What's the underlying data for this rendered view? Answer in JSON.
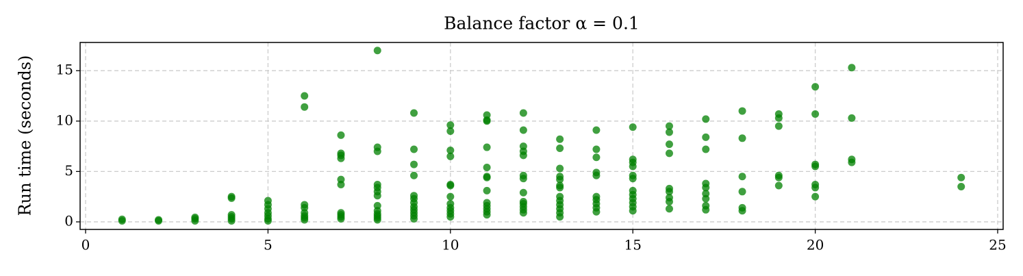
{
  "chart_data": {
    "type": "scatter",
    "title": "Balance factor α = 0.1",
    "ylabel": "Run time (seconds)",
    "color": "#008000",
    "grid": true,
    "xlim": [
      -0.15,
      25.15
    ],
    "ylim": [
      -0.75,
      17.8
    ],
    "xticks": [
      0,
      5,
      10,
      15,
      20,
      25
    ],
    "yticks": [
      0,
      5,
      10,
      15
    ],
    "x": [
      1,
      1,
      2,
      2,
      3,
      3,
      3,
      4,
      4,
      4,
      4,
      4,
      4,
      5,
      5,
      5,
      5,
      5,
      5,
      5,
      6,
      6,
      6,
      6,
      6,
      6,
      6,
      6,
      7,
      7,
      7,
      7,
      7,
      7,
      7,
      7,
      7,
      7,
      8,
      8,
      8,
      8,
      8,
      8,
      8,
      8,
      8,
      8,
      8,
      8,
      8,
      9,
      9,
      9,
      9,
      9,
      9,
      9,
      9,
      9,
      9,
      9,
      9,
      10,
      10,
      10,
      10,
      10,
      10,
      10,
      10,
      10,
      10,
      10,
      10,
      11,
      11,
      11,
      11,
      11,
      11,
      11,
      11,
      11,
      11,
      11,
      11,
      11,
      12,
      12,
      12,
      12,
      12,
      12,
      12,
      12,
      12,
      12,
      12,
      12,
      12,
      13,
      13,
      13,
      13,
      13,
      13,
      13,
      13,
      13,
      13,
      13,
      13,
      13,
      14,
      14,
      14,
      14,
      14,
      14,
      14,
      14,
      14,
      14,
      15,
      15,
      15,
      15,
      15,
      15,
      15,
      15,
      15,
      15,
      15,
      15,
      16,
      16,
      16,
      16,
      16,
      16,
      16,
      16,
      16,
      17,
      17,
      17,
      17,
      17,
      17,
      17,
      17,
      17,
      18,
      18,
      18,
      18,
      18,
      18,
      19,
      19,
      19,
      19,
      19,
      19,
      20,
      20,
      20,
      20,
      20,
      20,
      20,
      21,
      21,
      21,
      21,
      24,
      24
    ],
    "y": [
      0.1,
      0.25,
      0.1,
      0.2,
      0.1,
      0.3,
      0.45,
      0.1,
      0.3,
      0.5,
      0.7,
      2.35,
      2.5,
      0.1,
      0.3,
      0.6,
      0.9,
      1.3,
      1.7,
      2.1,
      0.2,
      0.4,
      0.6,
      0.9,
      1.4,
      1.7,
      11.4,
      12.5,
      0.3,
      0.5,
      0.7,
      0.9,
      3.7,
      4.2,
      6.3,
      6.6,
      6.8,
      8.6,
      0.2,
      0.4,
      0.6,
      0.8,
      1.1,
      1.6,
      2.6,
      3.0,
      3.4,
      3.7,
      7.0,
      7.4,
      17.0,
      0.3,
      0.6,
      0.9,
      1.2,
      1.5,
      1.9,
      2.3,
      2.6,
      4.6,
      5.7,
      7.2,
      10.8,
      0.5,
      0.8,
      1.1,
      1.4,
      1.8,
      2.5,
      3.6,
      3.7,
      6.5,
      7.1,
      9.0,
      9.6,
      0.7,
      1.0,
      1.3,
      1.6,
      1.9,
      3.1,
      4.4,
      4.5,
      5.4,
      7.4,
      10.0,
      10.1,
      10.6,
      0.9,
      1.2,
      1.5,
      1.8,
      2.0,
      2.9,
      4.3,
      4.6,
      6.6,
      7.0,
      7.5,
      9.1,
      10.8,
      0.5,
      0.9,
      1.3,
      1.7,
      2.1,
      2.5,
      3.4,
      3.6,
      4.2,
      4.5,
      5.3,
      7.3,
      8.2,
      1.0,
      1.4,
      1.8,
      2.2,
      2.5,
      4.6,
      4.9,
      6.4,
      7.2,
      9.1,
      1.1,
      1.5,
      1.9,
      2.3,
      2.7,
      3.1,
      4.3,
      4.6,
      5.5,
      5.9,
      6.2,
      9.4,
      1.3,
      2.0,
      2.4,
      3.0,
      3.3,
      6.8,
      7.7,
      8.9,
      9.5,
      1.2,
      1.6,
      2.3,
      2.8,
      3.4,
      3.8,
      7.2,
      8.4,
      10.2,
      1.1,
      1.4,
      3.0,
      4.5,
      8.3,
      11.0,
      3.6,
      4.4,
      4.6,
      9.5,
      10.3,
      10.7,
      2.5,
      3.4,
      3.7,
      5.5,
      5.7,
      10.7,
      13.4,
      5.9,
      6.2,
      10.3,
      15.3,
      3.5,
      4.4
    ]
  }
}
